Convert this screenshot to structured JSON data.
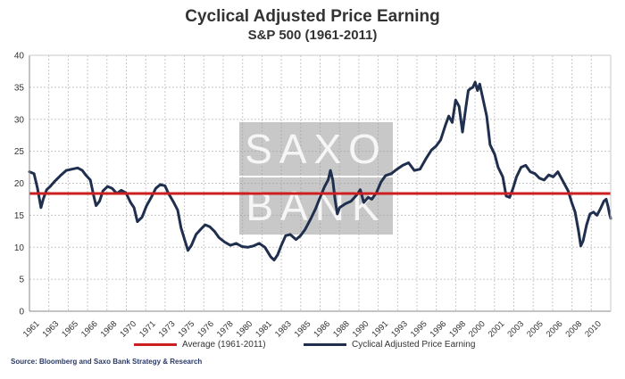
{
  "chart_data": {
    "type": "line",
    "title": "Cyclical Adjusted Price Earning",
    "subtitle": "S&P 500 (1961-2011)",
    "source": "Source: Bloomberg and Saxo Bank Strategy & Research",
    "watermark": [
      "SAXO",
      "BANK"
    ],
    "ylim": [
      0,
      40
    ],
    "yticks": [
      0,
      5,
      10,
      15,
      20,
      25,
      30,
      35,
      40
    ],
    "xlim": [
      1961.0,
      2011.6
    ],
    "xtick_labels": [
      "1961",
      "1963",
      "1965",
      "1966",
      "1968",
      "1970",
      "1971",
      "1973",
      "1975",
      "1976",
      "1978",
      "1980",
      "1981",
      "1983",
      "1985",
      "1986",
      "1988",
      "1990",
      "1991",
      "1993",
      "1995",
      "1996",
      "1998",
      "2000",
      "2001",
      "2003",
      "2005",
      "2006",
      "2008",
      "2010"
    ],
    "grid": true,
    "legend_position": "bottom",
    "colors": {
      "average": "#cc1f1f",
      "series": "#1f2f4d",
      "grid": "#c8c8c8",
      "axis": "#888888"
    },
    "series": [
      {
        "name": "Average (1961-2011)",
        "x": [
          1961.0,
          2011.6
        ],
        "y": [
          18.4,
          18.4
        ]
      },
      {
        "name": "Cyclical Adjusted Price Earning",
        "x": [
          1961.0,
          1961.4,
          1961.7,
          1962.0,
          1962.2,
          1962.5,
          1962.8,
          1963.2,
          1963.7,
          1964.2,
          1964.7,
          1965.2,
          1965.6,
          1965.9,
          1966.3,
          1966.6,
          1966.8,
          1967.1,
          1967.4,
          1967.8,
          1968.2,
          1968.6,
          1969.0,
          1969.4,
          1969.8,
          1970.1,
          1970.4,
          1970.8,
          1971.2,
          1971.6,
          1972.0,
          1972.4,
          1972.8,
          1973.1,
          1973.5,
          1973.9,
          1974.2,
          1974.5,
          1974.8,
          1975.1,
          1975.5,
          1975.9,
          1976.3,
          1976.7,
          1977.1,
          1977.5,
          1978.0,
          1978.5,
          1979.0,
          1979.5,
          1980.0,
          1980.5,
          1981.0,
          1981.5,
          1982.0,
          1982.3,
          1982.6,
          1982.9,
          1983.3,
          1983.7,
          1984.2,
          1984.6,
          1985.0,
          1985.5,
          1985.9,
          1986.3,
          1986.7,
          1987.0,
          1987.2,
          1987.4,
          1987.6,
          1987.8,
          1988.0,
          1988.5,
          1989.0,
          1989.5,
          1989.8,
          1990.1,
          1990.5,
          1990.8,
          1991.2,
          1991.6,
          1992.0,
          1992.5,
          1993.0,
          1993.5,
          1994.0,
          1994.5,
          1995.0,
          1995.5,
          1996.0,
          1996.4,
          1996.8,
          1997.2,
          1997.5,
          1997.8,
          1998.1,
          1998.4,
          1998.7,
          1999.0,
          1999.2,
          1999.4,
          1999.6,
          1999.8,
          2000.0,
          2000.2,
          2000.5,
          2000.8,
          2001.1,
          2001.5,
          2001.8,
          2002.2,
          2002.5,
          2002.8,
          2003.1,
          2003.4,
          2003.8,
          2004.2,
          2004.6,
          2005.0,
          2005.4,
          2005.8,
          2006.2,
          2006.6,
          2007.0,
          2007.3,
          2007.6,
          2007.9,
          2008.2,
          2008.5,
          2008.8,
          2009.0,
          2009.2,
          2009.5,
          2009.8,
          2010.1,
          2010.4,
          2010.7,
          2011.0,
          2011.2,
          2011.35,
          2011.5,
          2011.6
        ],
        "y": [
          21.8,
          21.5,
          19.2,
          16.2,
          17.5,
          19.0,
          19.5,
          20.3,
          21.2,
          22.0,
          22.2,
          22.4,
          22.0,
          21.3,
          20.5,
          18.0,
          16.5,
          17.2,
          18.8,
          19.5,
          19.2,
          18.4,
          18.9,
          18.5,
          17.0,
          16.2,
          14.0,
          14.7,
          16.5,
          17.8,
          19.2,
          19.8,
          19.6,
          18.4,
          17.2,
          15.8,
          13.0,
          11.2,
          9.5,
          10.3,
          12.0,
          12.8,
          13.5,
          13.2,
          12.5,
          11.5,
          10.8,
          10.3,
          10.6,
          10.1,
          10.0,
          10.2,
          10.6,
          10.0,
          8.5,
          8.0,
          8.8,
          10.2,
          11.8,
          12.0,
          11.2,
          11.8,
          12.8,
          14.5,
          16.0,
          17.8,
          19.5,
          20.5,
          22.0,
          20.5,
          17.5,
          15.2,
          16.2,
          16.8,
          17.2,
          18.2,
          19.0,
          17.0,
          17.8,
          17.5,
          18.5,
          20.2,
          21.2,
          21.5,
          22.2,
          22.8,
          23.2,
          22.0,
          22.2,
          23.8,
          25.2,
          25.8,
          26.8,
          29.0,
          30.5,
          29.5,
          33.0,
          32.0,
          28.0,
          32.0,
          34.5,
          34.8,
          35.0,
          35.8,
          34.5,
          35.5,
          33.0,
          30.5,
          26.0,
          24.5,
          22.5,
          21.0,
          18.0,
          17.8,
          19.2,
          21.0,
          22.5,
          22.8,
          21.8,
          21.5,
          20.8,
          20.5,
          21.3,
          21.0,
          21.8,
          20.8,
          19.8,
          18.8,
          17.0,
          15.5,
          12.5,
          10.2,
          11.0,
          13.5,
          15.2,
          15.5,
          15.0,
          16.0,
          17.2,
          17.5,
          16.5,
          15.2,
          14.5
        ]
      }
    ]
  }
}
